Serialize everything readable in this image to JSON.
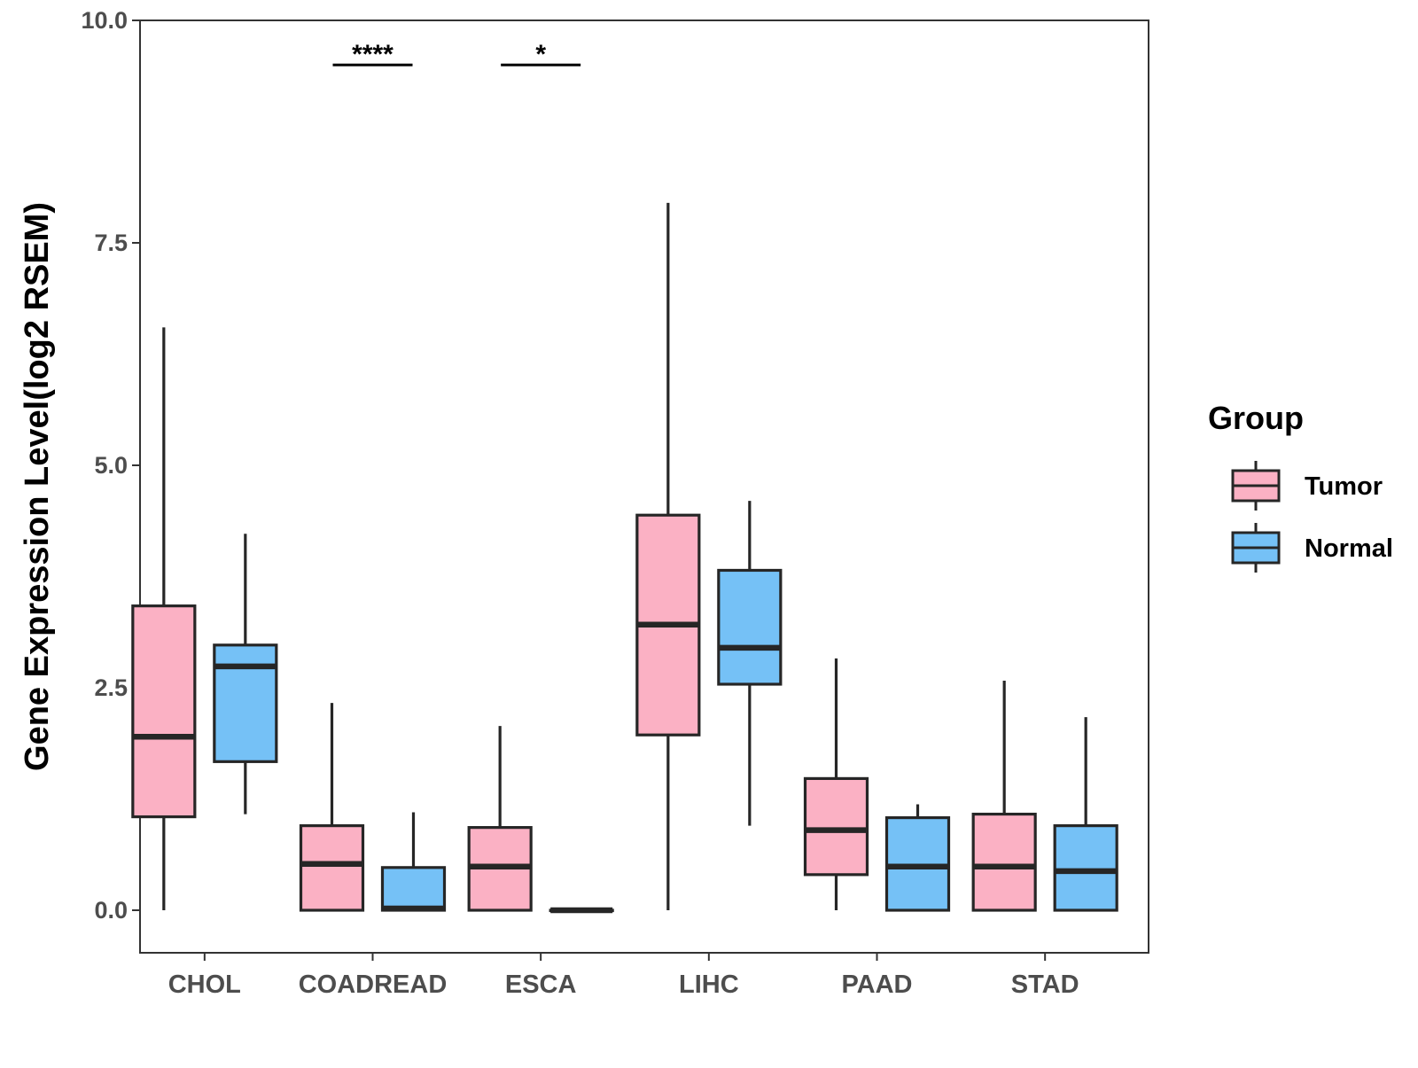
{
  "chart_data": {
    "type": "boxplot",
    "title": "",
    "xlabel": "",
    "ylabel": "Gene Expression Level(log2 RSEM)",
    "ylim": [
      -0.45,
      10.0
    ],
    "yticks": [
      0.0,
      2.5,
      5.0,
      7.5,
      10.0
    ],
    "ytick_labels": [
      "0.0",
      "2.5",
      "5.0",
      "7.5",
      "10.0"
    ],
    "categories": [
      "CHOL",
      "COADREAD",
      "ESCA",
      "LIHC",
      "PAAD",
      "STAD"
    ],
    "legend": {
      "title": "Group",
      "position": "right",
      "entries": [
        "Tumor",
        "Normal"
      ]
    },
    "colors": {
      "Tumor": "#fbb1c4",
      "Normal": "#75c1f6",
      "outline": "#262626"
    },
    "series": [
      {
        "name": "Tumor",
        "boxes": [
          {
            "min": 0.0,
            "q1": 1.05,
            "median": 1.95,
            "q3": 3.42,
            "max": 6.55
          },
          {
            "min": 0.0,
            "q1": 0.0,
            "median": 0.52,
            "q3": 0.95,
            "max": 2.33
          },
          {
            "min": 0.0,
            "q1": 0.0,
            "median": 0.49,
            "q3": 0.93,
            "max": 2.07
          },
          {
            "min": 0.0,
            "q1": 1.97,
            "median": 3.21,
            "q3": 4.44,
            "max": 7.95
          },
          {
            "min": 0.0,
            "q1": 0.4,
            "median": 0.9,
            "q3": 1.48,
            "max": 2.83
          },
          {
            "min": 0.0,
            "q1": 0.0,
            "median": 0.49,
            "q3": 1.08,
            "max": 2.58
          }
        ]
      },
      {
        "name": "Normal",
        "boxes": [
          {
            "min": 1.08,
            "q1": 1.67,
            "median": 2.74,
            "q3": 2.98,
            "max": 4.23
          },
          {
            "min": 0.0,
            "q1": 0.0,
            "median": 0.02,
            "q3": 0.48,
            "max": 1.1
          },
          {
            "min": 0.0,
            "q1": 0.0,
            "median": 0.0,
            "q3": 0.0,
            "max": 0.0
          },
          {
            "min": 0.95,
            "q1": 2.54,
            "median": 2.95,
            "q3": 3.82,
            "max": 4.6
          },
          {
            "min": 0.0,
            "q1": 0.0,
            "median": 0.49,
            "q3": 1.04,
            "max": 1.19
          },
          {
            "min": 0.0,
            "q1": 0.0,
            "median": 0.44,
            "q3": 0.95,
            "max": 2.17
          }
        ]
      }
    ],
    "annotations": [
      {
        "category": "COADREAD",
        "label": "****",
        "y": 9.5
      },
      {
        "category": "ESCA",
        "label": "*",
        "y": 9.5
      }
    ]
  }
}
